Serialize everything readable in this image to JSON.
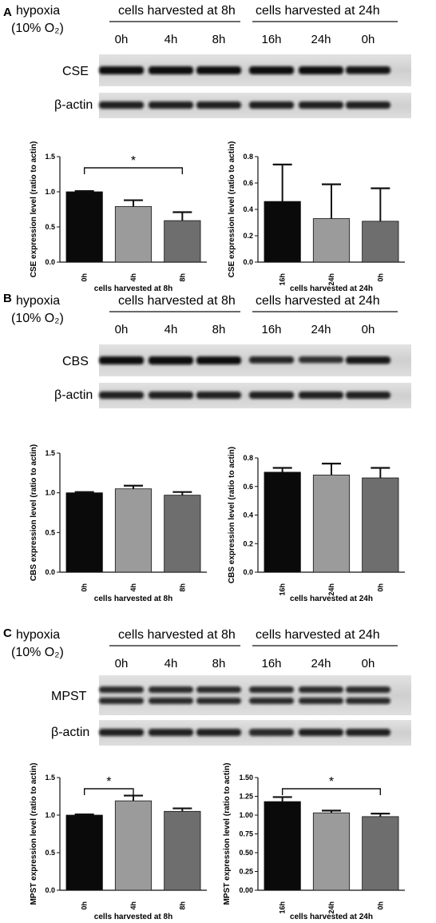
{
  "hypoxia": {
    "line1": "hypoxia",
    "line2": "(10% O₂)"
  },
  "groups": {
    "h8": "cells harvested at 8h",
    "h24": "cells harvested at 24h"
  },
  "lanes": [
    "0h",
    "4h",
    "8h",
    "16h",
    "24h",
    "0h"
  ],
  "actin_label": "β-actin",
  "panels": [
    {
      "letter": "A",
      "protein": "CSE"
    },
    {
      "letter": "B",
      "protein": "CBS"
    },
    {
      "letter": "C",
      "protein": "MPST"
    }
  ],
  "colors": {
    "bar1": "#0a0a0a",
    "bar2": "#9b9b9b",
    "bar3": "#6e6e6e"
  },
  "chart_data": [
    {
      "id": "A8",
      "type": "bar",
      "categories": [
        "0h",
        "4h",
        "8h"
      ],
      "values": [
        1.0,
        0.79,
        0.59
      ],
      "errors": [
        0.01,
        0.09,
        0.12
      ],
      "ylabel": "CSE expression level (ratio to actin)",
      "xlabel": "cells harvested at 8h",
      "ylim": [
        0,
        1.5
      ],
      "ticks": [
        "0.0",
        "0.5",
        "1.0",
        "1.5"
      ],
      "sig": {
        "from": 0,
        "to": 2,
        "label": "*"
      }
    },
    {
      "id": "A24",
      "type": "bar",
      "categories": [
        "16h",
        "24h",
        "0h"
      ],
      "values": [
        0.46,
        0.33,
        0.31
      ],
      "errors": [
        0.28,
        0.26,
        0.25
      ],
      "ylabel": "CSE expression level (ratio to actin)",
      "xlabel": "cells harvested at 24h",
      "ylim": [
        0,
        0.8
      ],
      "ticks": [
        "0.0",
        "0.2",
        "0.4",
        "0.6",
        "0.8"
      ]
    },
    {
      "id": "B8",
      "type": "bar",
      "categories": [
        "0h",
        "4h",
        "8h"
      ],
      "values": [
        1.0,
        1.05,
        0.97
      ],
      "errors": [
        0.01,
        0.04,
        0.04
      ],
      "ylabel": "CBS expression level (ratio to actin)",
      "xlabel": "cells harvested at 8h",
      "ylim": [
        0,
        1.5
      ],
      "ticks": [
        "0.0",
        "0.5",
        "1.0",
        "1.5"
      ]
    },
    {
      "id": "B24",
      "type": "bar",
      "categories": [
        "16h",
        "24h",
        "0h"
      ],
      "values": [
        0.7,
        0.68,
        0.66
      ],
      "errors": [
        0.03,
        0.08,
        0.07
      ],
      "ylabel": "CBS expression level (ratio to actin)",
      "xlabel": "cells harvested at 24h",
      "ylim": [
        0,
        0.8
      ],
      "ticks": [
        "0.0",
        "0.2",
        "0.4",
        "0.6",
        "0.8"
      ]
    },
    {
      "id": "C8",
      "type": "bar",
      "categories": [
        "0h",
        "4h",
        "8h"
      ],
      "values": [
        1.0,
        1.19,
        1.05
      ],
      "errors": [
        0.01,
        0.07,
        0.04
      ],
      "ylabel": "MPST expression level (ratio to actin)",
      "xlabel": "cells harvested at 8h",
      "ylim": [
        0,
        1.5
      ],
      "ticks": [
        "0.0",
        "0.5",
        "1.0",
        "1.5"
      ],
      "sig": {
        "from": 0,
        "to": 1,
        "label": "*"
      }
    },
    {
      "id": "C24",
      "type": "bar",
      "categories": [
        "16h",
        "24h",
        "0h"
      ],
      "values": [
        1.18,
        1.03,
        0.98
      ],
      "errors": [
        0.06,
        0.03,
        0.04
      ],
      "ylabel": "MPST expression level (ratio to actin)",
      "xlabel": "cells harvested at 24h",
      "ylim": [
        0,
        1.5
      ],
      "ticks": [
        "0.00",
        "0.25",
        "0.50",
        "0.75",
        "1.00",
        "1.25",
        "1.50"
      ],
      "sig": {
        "from": 0,
        "to": 2,
        "label": "*"
      }
    }
  ]
}
